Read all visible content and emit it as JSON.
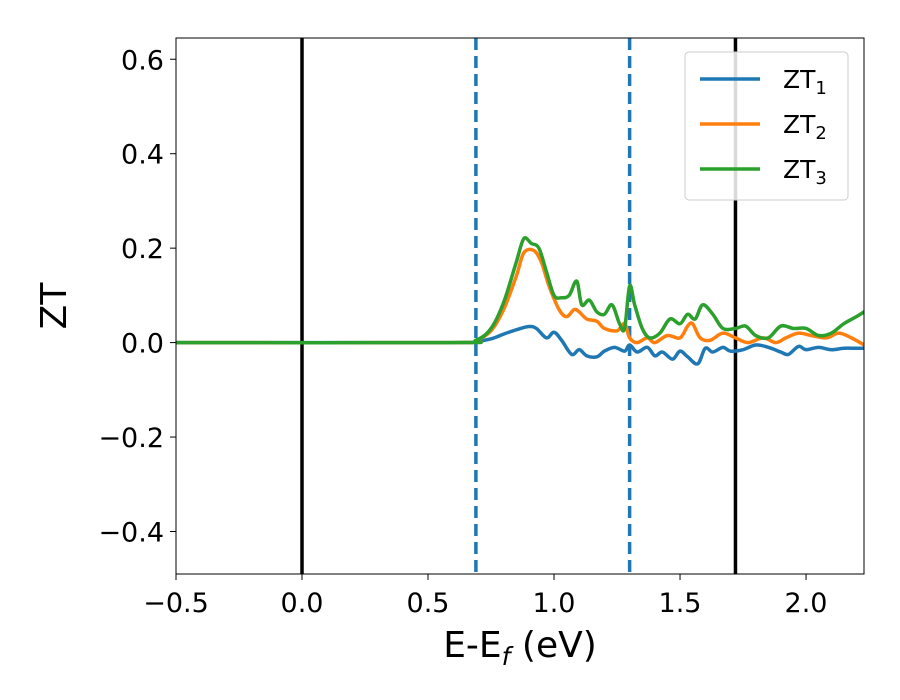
{
  "chart_data": {
    "type": "line",
    "xlabel": {
      "base": "E-E",
      "sub": "f",
      "tail": " (eV)"
    },
    "ylabel": "ZT",
    "xlim": [
      -0.5,
      2.23
    ],
    "ylim": [
      -0.49,
      0.645
    ],
    "xticks": [
      -0.5,
      0.0,
      0.5,
      1.0,
      1.5,
      2.0
    ],
    "xtick_labels": [
      "−0.5",
      "0.0",
      "0.5",
      "1.0",
      "1.5",
      "2.0"
    ],
    "yticks": [
      -0.4,
      -0.2,
      0.0,
      0.2,
      0.4,
      0.6
    ],
    "ytick_labels": [
      "−0.4",
      "−0.2",
      "0.0",
      "0.2",
      "0.4",
      "0.6"
    ],
    "grid": false,
    "legend_position": "top-right",
    "vlines": [
      {
        "x": 0.0,
        "style": "solid",
        "color": "#000000"
      },
      {
        "x": 0.69,
        "style": "dashed",
        "color": "#1f77b4"
      },
      {
        "x": 1.3,
        "style": "dashed",
        "color": "#1f77b4"
      },
      {
        "x": 1.72,
        "style": "solid",
        "color": "#000000"
      }
    ],
    "series": [
      {
        "name": "ZT",
        "sub": "1",
        "color": "#1f77b4",
        "x": [
          -0.5,
          0.6,
          0.69,
          0.75,
          0.8,
          0.85,
          0.9,
          0.93,
          0.97,
          1.0,
          1.03,
          1.07,
          1.1,
          1.13,
          1.17,
          1.2,
          1.24,
          1.28,
          1.3,
          1.33,
          1.37,
          1.4,
          1.43,
          1.47,
          1.5,
          1.53,
          1.57,
          1.6,
          1.63,
          1.67,
          1.7,
          1.75,
          1.8,
          1.85,
          1.9,
          1.93,
          1.97,
          2.0,
          2.05,
          2.1,
          2.15,
          2.2,
          2.23
        ],
        "y": [
          0.0,
          0.0,
          0.002,
          0.008,
          0.018,
          0.027,
          0.034,
          0.03,
          0.01,
          0.022,
          0.005,
          -0.025,
          -0.015,
          -0.028,
          -0.03,
          -0.018,
          -0.01,
          -0.018,
          -0.005,
          -0.02,
          -0.01,
          -0.028,
          -0.02,
          -0.035,
          -0.018,
          -0.03,
          -0.045,
          -0.012,
          -0.02,
          -0.01,
          -0.018,
          -0.015,
          -0.005,
          -0.01,
          -0.02,
          -0.025,
          -0.008,
          -0.015,
          -0.01,
          -0.015,
          -0.012,
          -0.012,
          -0.012
        ]
      },
      {
        "name": "ZT",
        "sub": "2",
        "color": "#ff7f0e",
        "x": [
          -0.5,
          0.6,
          0.69,
          0.75,
          0.8,
          0.85,
          0.88,
          0.92,
          0.95,
          0.98,
          1.02,
          1.05,
          1.08,
          1.1,
          1.13,
          1.17,
          1.2,
          1.25,
          1.28,
          1.3,
          1.33,
          1.37,
          1.4,
          1.45,
          1.5,
          1.53,
          1.55,
          1.58,
          1.62,
          1.67,
          1.72,
          1.77,
          1.83,
          1.88,
          1.92,
          1.97,
          2.02,
          2.08,
          2.13,
          2.18,
          2.23
        ],
        "y": [
          0.0,
          0.0,
          0.005,
          0.025,
          0.07,
          0.14,
          0.19,
          0.195,
          0.17,
          0.12,
          0.07,
          0.055,
          0.07,
          0.065,
          0.05,
          0.045,
          0.03,
          0.025,
          0.04,
          0.01,
          0.0,
          0.01,
          0.0,
          0.015,
          0.01,
          0.035,
          0.04,
          0.01,
          0.005,
          0.02,
          0.01,
          0.0,
          0.01,
          0.0,
          0.01,
          0.02,
          0.015,
          0.01,
          0.02,
          0.01,
          -0.005
        ]
      },
      {
        "name": "ZT",
        "sub": "3",
        "color": "#2ca02c",
        "x": [
          -0.5,
          0.6,
          0.69,
          0.75,
          0.8,
          0.85,
          0.88,
          0.91,
          0.94,
          0.97,
          1.0,
          1.03,
          1.06,
          1.09,
          1.11,
          1.14,
          1.17,
          1.2,
          1.23,
          1.26,
          1.28,
          1.3,
          1.32,
          1.35,
          1.38,
          1.42,
          1.46,
          1.5,
          1.53,
          1.56,
          1.59,
          1.63,
          1.67,
          1.72,
          1.76,
          1.8,
          1.85,
          1.9,
          1.95,
          2.0,
          2.05,
          2.1,
          2.15,
          2.2,
          2.23
        ],
        "y": [
          0.0,
          0.0,
          0.005,
          0.03,
          0.085,
          0.17,
          0.22,
          0.21,
          0.2,
          0.15,
          0.1,
          0.095,
          0.1,
          0.13,
          0.08,
          0.09,
          0.065,
          0.06,
          0.08,
          0.04,
          0.03,
          0.12,
          0.08,
          0.03,
          0.01,
          0.02,
          0.05,
          0.04,
          0.06,
          0.05,
          0.08,
          0.06,
          0.03,
          0.03,
          0.035,
          0.015,
          0.01,
          0.035,
          0.03,
          0.03,
          0.015,
          0.02,
          0.04,
          0.055,
          0.065
        ]
      }
    ]
  }
}
